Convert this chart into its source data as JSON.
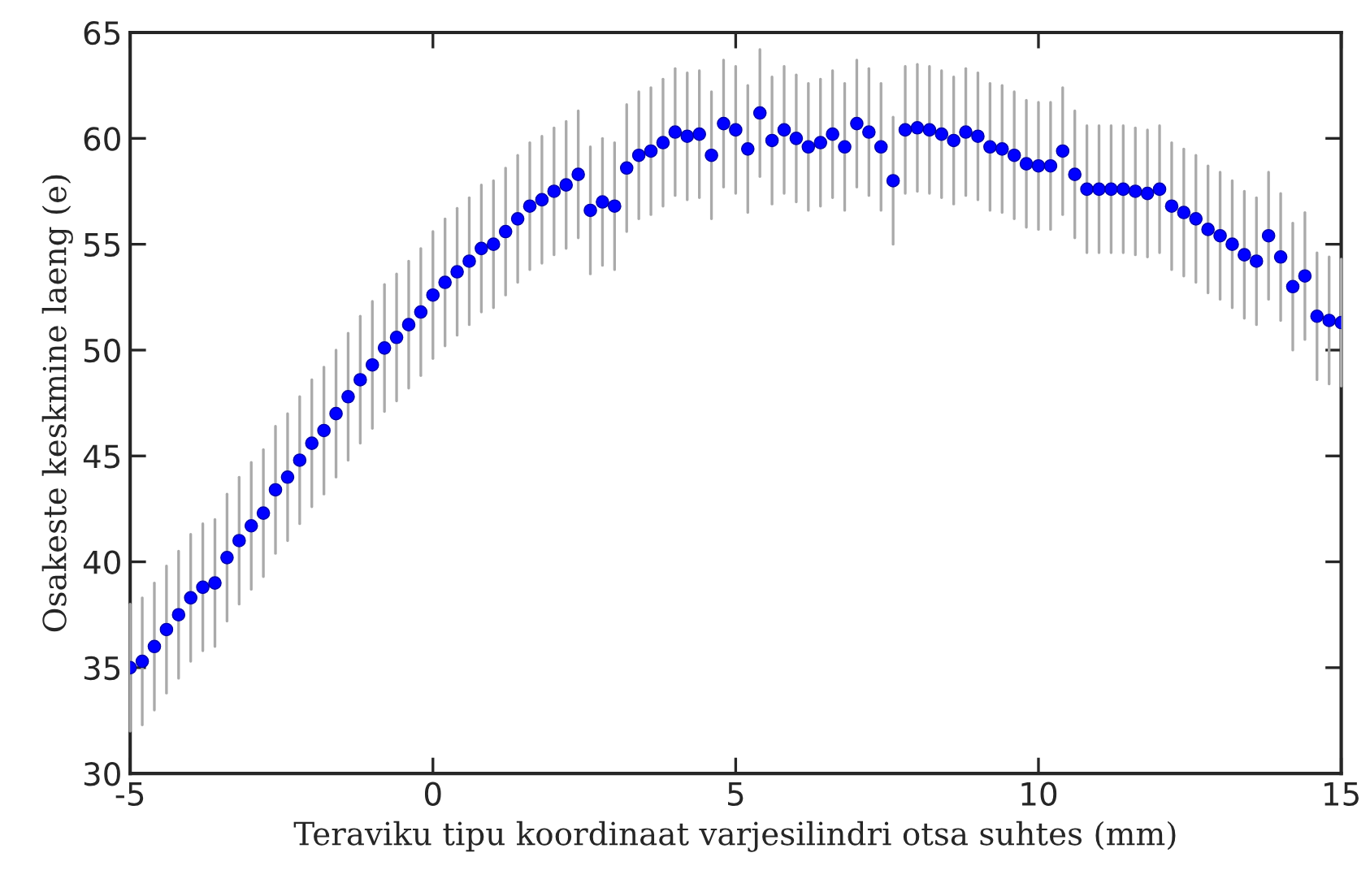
{
  "chart_data": {
    "type": "scatter",
    "xlabel": "Teraviku tipu koordinaat varjesilindri otsa suhtes (mm)",
    "ylabel": "Osakeste keskmine laeng (e)",
    "x": [
      -5.0,
      -4.8,
      -4.6,
      -4.4,
      -4.2,
      -4.0,
      -3.8,
      -3.6,
      -3.4,
      -3.2,
      -3.0,
      -2.8,
      -2.6,
      -2.4,
      -2.2,
      -2.0,
      -1.8,
      -1.6,
      -1.4,
      -1.2,
      -1.0,
      -0.8,
      -0.6,
      -0.4,
      -0.2,
      0.0,
      0.2,
      0.4,
      0.6,
      0.8,
      1.0,
      1.2,
      1.4,
      1.6,
      1.8,
      2.0,
      2.2,
      2.4,
      2.6,
      2.8,
      3.0,
      3.2,
      3.4,
      3.6,
      3.8,
      4.0,
      4.2,
      4.4,
      4.6,
      4.8,
      5.0,
      5.2,
      5.4,
      5.6,
      5.8,
      6.0,
      6.2,
      6.4,
      6.6,
      6.8,
      7.0,
      7.2,
      7.4,
      7.6,
      7.8,
      8.0,
      8.2,
      8.4,
      8.6,
      8.8,
      9.0,
      9.2,
      9.4,
      9.6,
      9.8,
      10.0,
      10.2,
      10.4,
      10.6,
      10.8,
      11.0,
      11.2,
      11.4,
      11.6,
      11.8,
      12.0,
      12.2,
      12.4,
      12.6,
      12.8,
      13.0,
      13.2,
      13.4,
      13.6,
      13.8,
      14.0,
      14.2,
      14.4,
      14.6,
      14.8,
      15.0
    ],
    "series": [
      {
        "color": "#0000ff",
        "values": [
          35.0,
          35.3,
          36.0,
          36.8,
          37.5,
          38.3,
          38.8,
          39.0,
          40.2,
          41.0,
          41.7,
          42.3,
          43.4,
          44.0,
          44.8,
          45.6,
          46.2,
          47.0,
          47.8,
          48.6,
          49.3,
          50.1,
          50.6,
          51.2,
          51.8,
          52.6,
          53.2,
          53.7,
          54.2,
          54.8,
          55.0,
          55.6,
          56.2,
          56.8,
          57.1,
          57.5,
          57.8,
          58.3,
          56.6,
          57.0,
          56.8,
          58.6,
          59.2,
          59.4,
          59.8,
          60.3,
          60.1,
          60.2,
          59.2,
          60.7,
          60.4,
          59.5,
          61.2,
          59.9,
          60.4,
          60.0,
          59.6,
          59.8,
          60.2,
          59.6,
          60.7,
          60.3,
          59.6,
          58.0,
          60.4,
          60.5,
          60.4,
          60.2,
          59.9,
          60.3,
          60.1,
          59.6,
          59.5,
          59.2,
          58.8,
          58.7,
          58.7,
          59.4,
          58.3,
          57.6,
          57.6,
          57.6,
          57.6,
          57.5,
          57.4,
          57.6,
          56.8,
          56.5,
          56.2,
          55.7,
          55.4,
          55.0,
          54.5,
          54.2,
          55.4,
          54.4,
          53.0,
          53.5,
          51.6,
          51.4,
          51.3
        ],
        "errors": [
          3,
          3,
          3,
          3,
          3,
          3,
          3,
          3,
          3,
          3,
          3,
          3,
          3,
          3,
          3,
          3,
          3,
          3,
          3,
          3,
          3,
          3,
          3,
          3,
          3,
          3,
          3,
          3,
          3,
          3,
          3,
          3,
          3,
          3,
          3,
          3,
          3,
          3,
          3,
          3,
          3,
          3,
          3,
          3,
          3,
          3,
          3,
          3,
          3,
          3,
          3,
          3,
          3,
          3,
          3,
          3,
          3,
          3,
          3,
          3,
          3,
          3,
          3,
          3,
          3,
          3,
          3,
          3,
          3,
          3,
          3,
          3,
          3,
          3,
          3,
          3,
          3,
          3,
          3,
          3,
          3,
          3,
          3,
          3,
          3,
          3,
          3,
          3,
          3,
          3,
          3,
          3,
          3,
          3,
          3,
          3,
          3,
          3,
          3,
          3,
          3
        ]
      }
    ],
    "xlim": [
      -5,
      15
    ],
    "xticks": [
      {
        "value": -5,
        "label": "-5"
      },
      0,
      5,
      10,
      15
    ],
    "ylim": [
      30,
      65
    ],
    "yticks": [
      30,
      35,
      40,
      45,
      50,
      55,
      60,
      65
    ],
    "marker": "circle",
    "grid": false,
    "legend": false
  }
}
